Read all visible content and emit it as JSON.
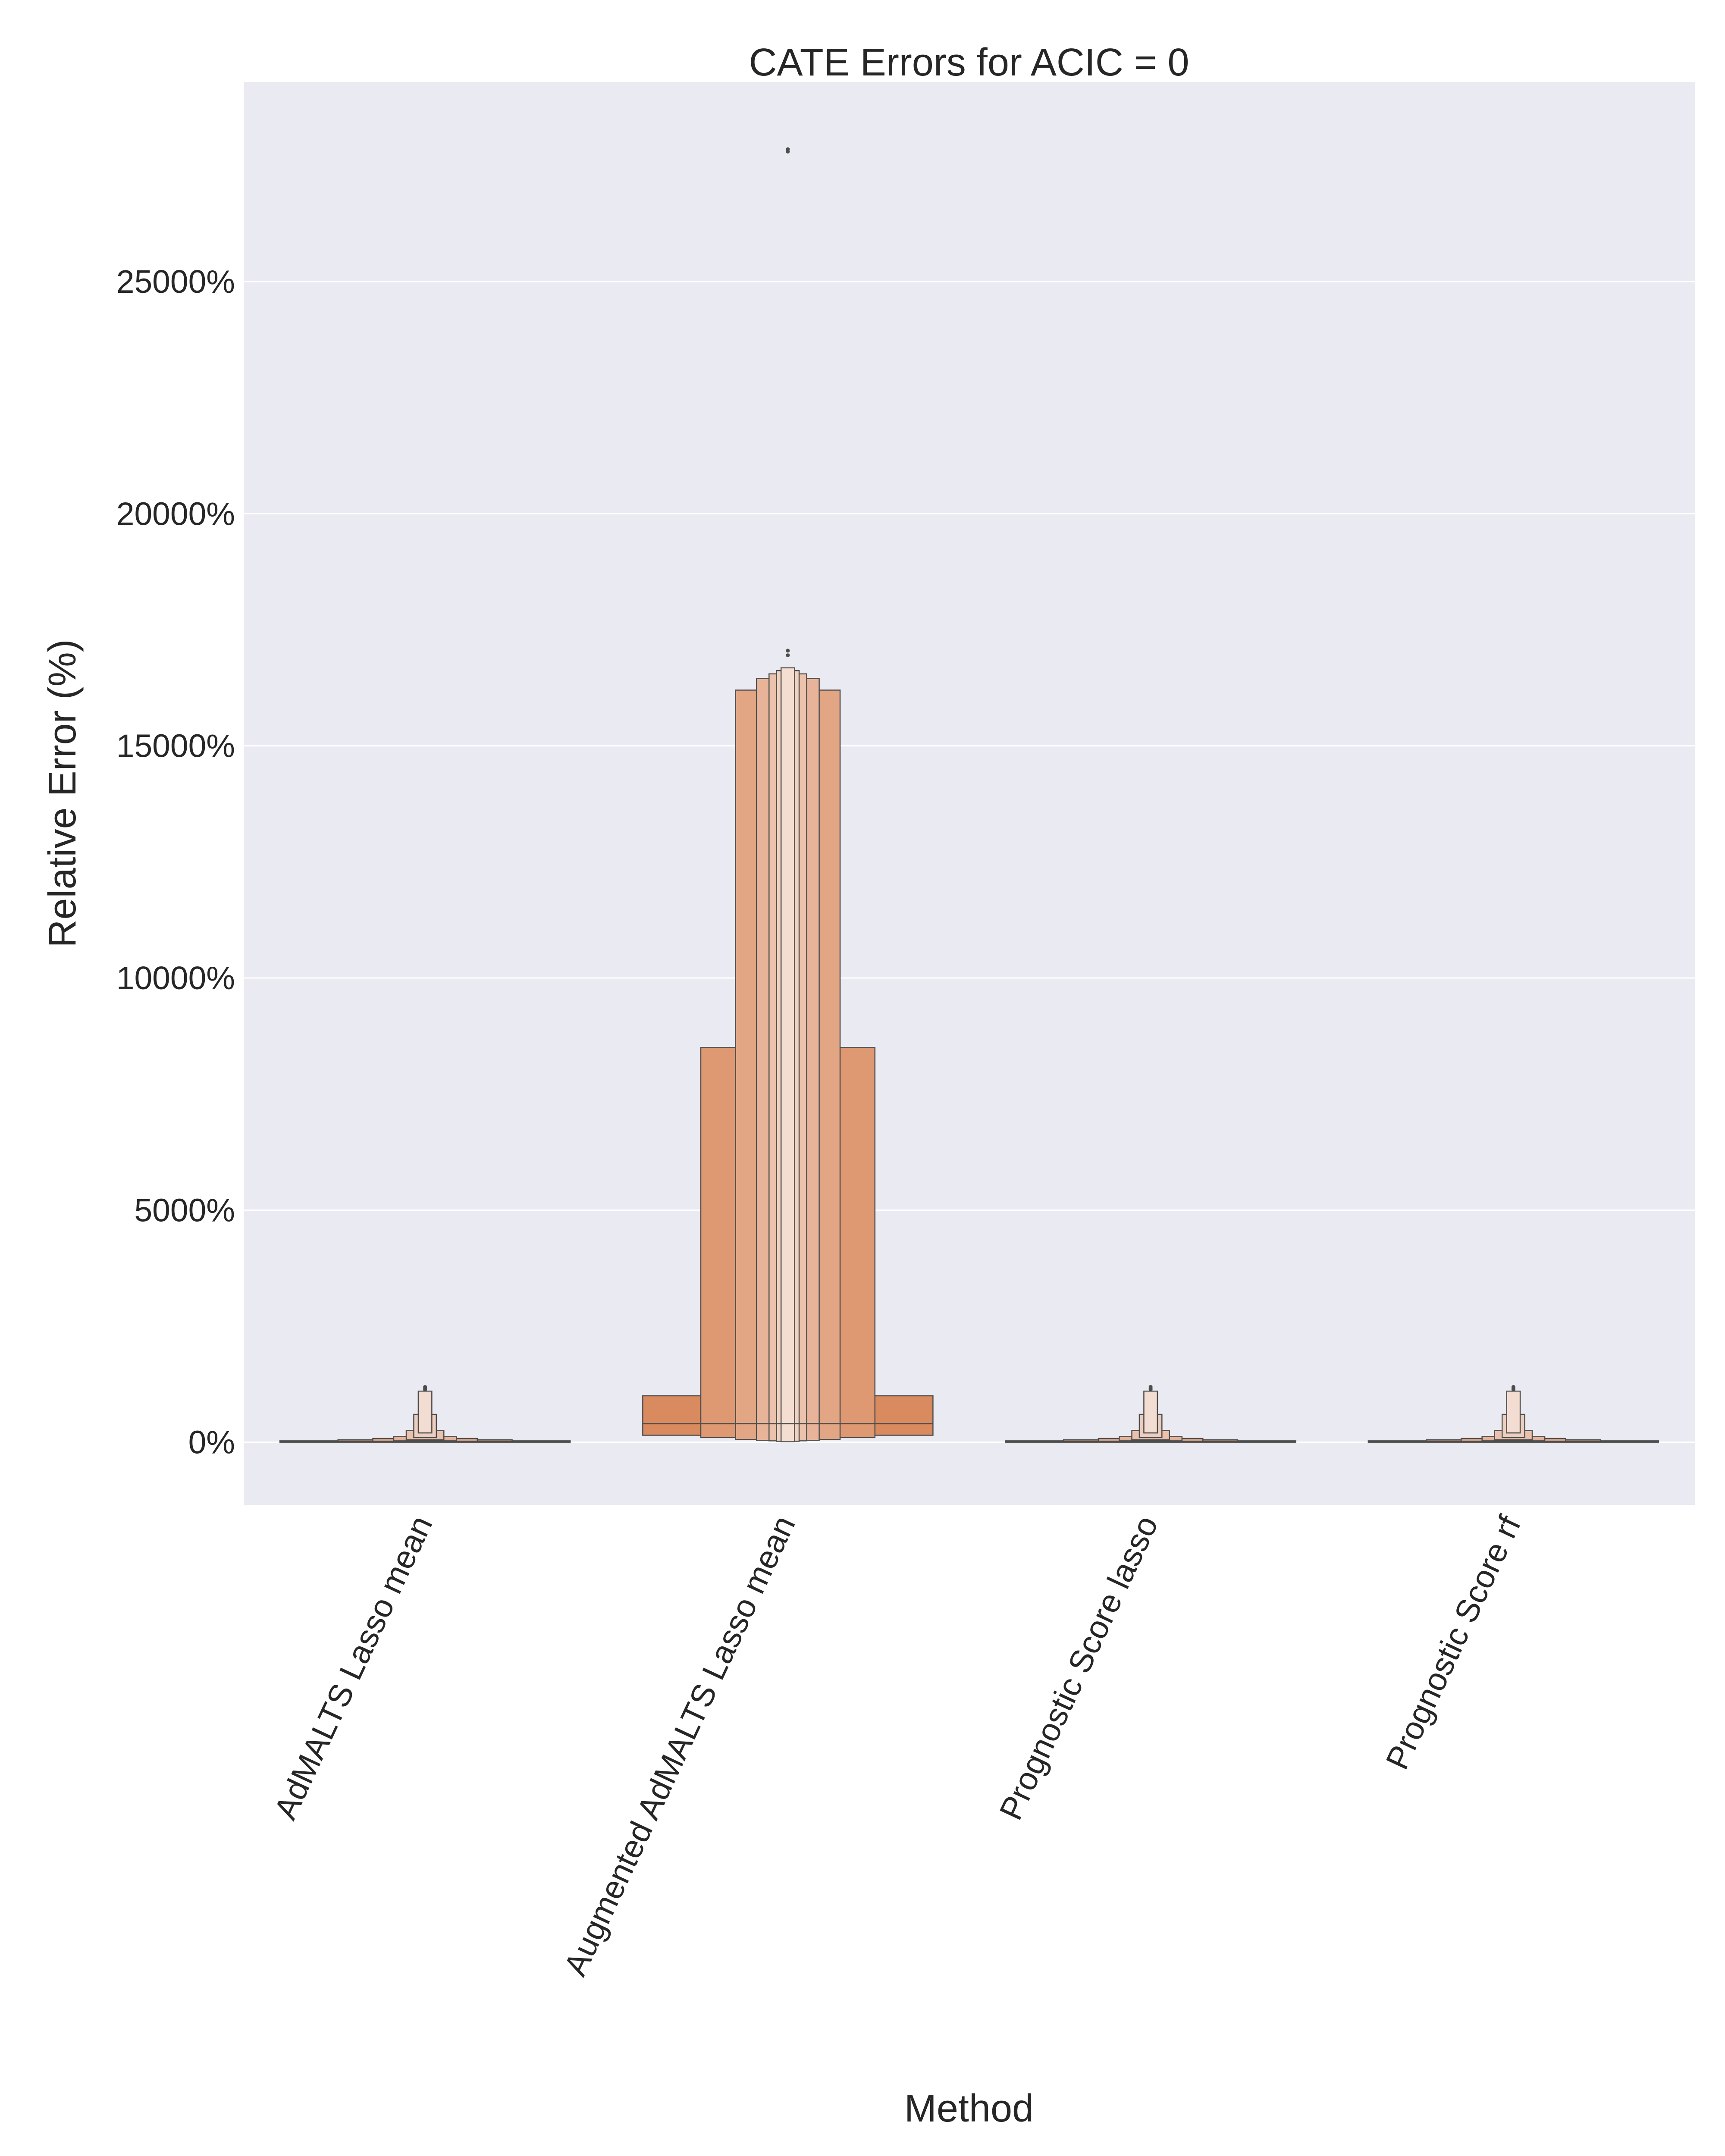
{
  "chart_data": {
    "type": "boxen",
    "title": "CATE Errors for ACIC = 0",
    "xlabel": "Method",
    "ylabel": "Relative Error (%)",
    "y_unit_suffix": "%",
    "ylim": [
      -1350,
      29300
    ],
    "yticks": [
      0,
      5000,
      10000,
      15000,
      20000,
      25000
    ],
    "ytick_labels": [
      "0%",
      "5000%",
      "10000%",
      "15000%",
      "20000%",
      "25000%"
    ],
    "grid": true,
    "background": "#eaeaf2",
    "gridline_color": "#ffffff",
    "categories": [
      "AdMALTS Lasso mean",
      "Augmented AdMALTS Lasso mean",
      "Prognostic Score lasso",
      "Prognostic Score rf"
    ],
    "series": [
      {
        "color": "#d4875f",
        "median": 15,
        "boxes": [
          [
            0,
            30
          ],
          [
            10,
            50
          ],
          [
            20,
            80
          ],
          [
            30,
            120
          ],
          [
            50,
            250
          ],
          [
            100,
            600
          ],
          [
            200,
            1100
          ]
        ],
        "outliers": [
          1130,
          1160,
          1190
        ]
      },
      {
        "color": "#d98a5f",
        "median": 400,
        "boxes": [
          [
            150,
            1000
          ],
          [
            100,
            8500
          ],
          [
            60,
            16200
          ],
          [
            40,
            16450
          ],
          [
            30,
            16550
          ],
          [
            20,
            16620
          ],
          [
            10,
            16680
          ]
        ],
        "outliers": [
          16950,
          17050,
          27800,
          27850
        ]
      },
      {
        "color": "#d4875f",
        "median": 15,
        "boxes": [
          [
            0,
            30
          ],
          [
            10,
            50
          ],
          [
            20,
            80
          ],
          [
            30,
            120
          ],
          [
            50,
            250
          ],
          [
            100,
            600
          ],
          [
            200,
            1100
          ]
        ],
        "outliers": [
          1130,
          1160,
          1190
        ]
      },
      {
        "color": "#d4875f",
        "median": 15,
        "boxes": [
          [
            0,
            30
          ],
          [
            10,
            50
          ],
          [
            20,
            80
          ],
          [
            30,
            120
          ],
          [
            50,
            250
          ],
          [
            100,
            600
          ],
          [
            200,
            1100
          ]
        ],
        "outliers": [
          1130,
          1160,
          1190
        ]
      }
    ]
  }
}
